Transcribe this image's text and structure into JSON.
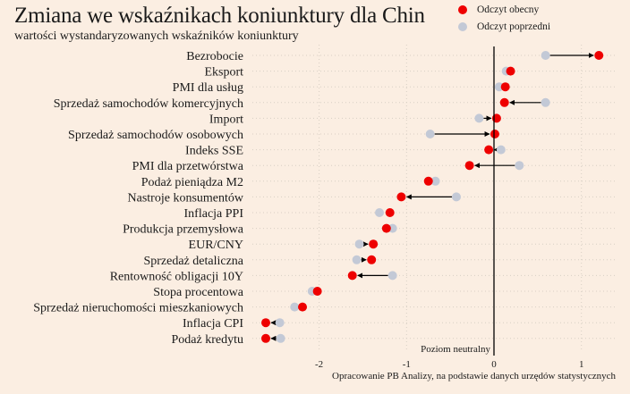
{
  "chart_data": {
    "type": "scatter",
    "title": "Zmiana we wskaźnikach koniunktury dla Chin",
    "subtitle": "wartości wystandaryzowanych wskaźników koniunktury",
    "xlabel": "",
    "ylabel": "",
    "xlim": [
      -2.8,
      1.35
    ],
    "xticks": [
      -2,
      -1,
      0,
      1
    ],
    "xtick_labels": [
      "-2",
      "-1",
      "0",
      "1"
    ],
    "grid": true,
    "legend_position": "top-right",
    "legend": [
      {
        "name": "Odczyt obecny",
        "color": "#ee0000"
      },
      {
        "name": "Odczyt poprzedni",
        "color": "#c3c9d6"
      }
    ],
    "annotation_neutral": "Poziom neutralny",
    "source_note": "Opracowanie PB Analizy, na podstawie danych urzędów statystycznych",
    "categories": [
      "Bezrobocie",
      "Eksport",
      "PMI dla usług",
      "Sprzedaż samochodów komercyjnych",
      "Import",
      "Sprzedaż samochodów osobowych",
      "Indeks SSE",
      "PMI dla przetwórstwa",
      "Podaż pieniądza M2",
      "Nastroje konsumentów",
      "Inflacja PPI",
      "Produkcja przemysłowa",
      "EUR/CNY",
      "Sprzedaż detaliczna",
      "Rentowność obligacji 10Y",
      "Stopa procentowa",
      "Sprzedaż nieruchomości mieszkaniowych",
      "Inflacja CPI",
      "Podaż kredytu"
    ],
    "series": [
      {
        "name": "Odczyt obecny",
        "values": [
          1.2,
          0.19,
          0.13,
          0.12,
          0.03,
          0.01,
          -0.06,
          -0.28,
          -0.75,
          -1.06,
          -1.19,
          -1.23,
          -1.38,
          -1.4,
          -1.62,
          -2.02,
          -2.19,
          -2.61,
          -2.61
        ]
      },
      {
        "name": "Odczyt poprzedni",
        "values": [
          0.59,
          0.14,
          0.06,
          0.59,
          -0.17,
          -0.73,
          0.08,
          0.29,
          -0.67,
          -0.43,
          -1.31,
          -1.16,
          -1.54,
          -1.57,
          -1.16,
          -2.08,
          -2.28,
          -2.45,
          -2.44
        ]
      }
    ]
  }
}
